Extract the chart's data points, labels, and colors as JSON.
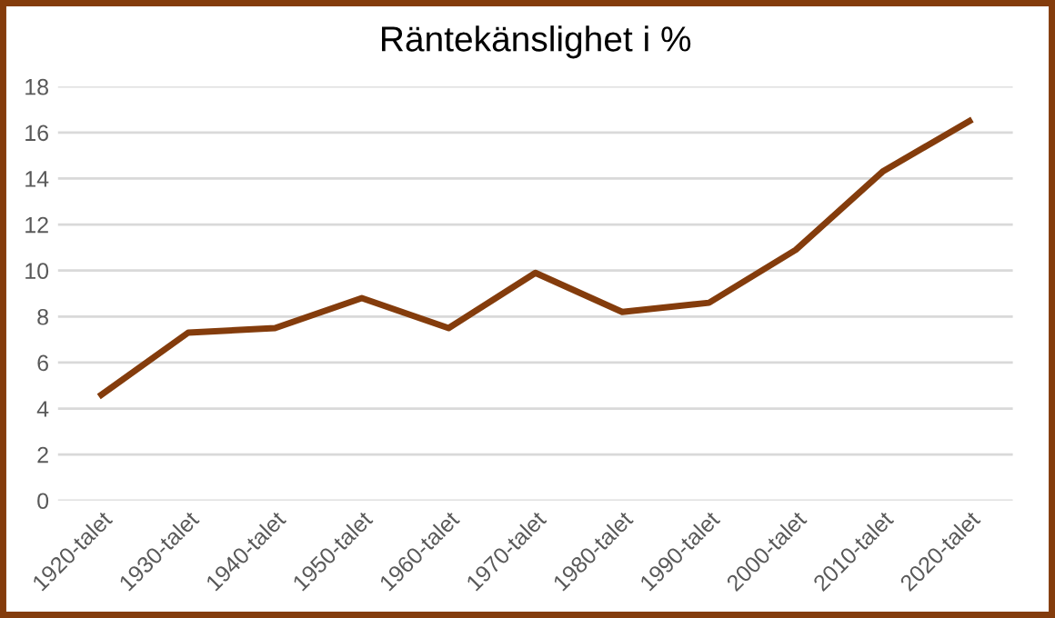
{
  "chart_data": {
    "type": "line",
    "title": "Räntekänslighet i %",
    "categories": [
      "1920-talet",
      "1930-talet",
      "1940-talet",
      "1950-talet",
      "1960-talet",
      "1970-talet",
      "1980-talet",
      "1990-talet",
      "2000-talet",
      "2010-talet",
      "2020-talet"
    ],
    "series": [
      {
        "color": "#843c0c",
        "values": [
          4.6,
          7.3,
          7.5,
          8.8,
          7.5,
          9.9,
          8.2,
          8.6,
          10.9,
          14.3,
          16.5
        ]
      }
    ],
    "ylim": [
      0,
      18
    ],
    "yticks": [
      0,
      2,
      4,
      6,
      8,
      10,
      12,
      14,
      16,
      18
    ],
    "grid": "y",
    "marker": "none",
    "line_style": "solid"
  }
}
